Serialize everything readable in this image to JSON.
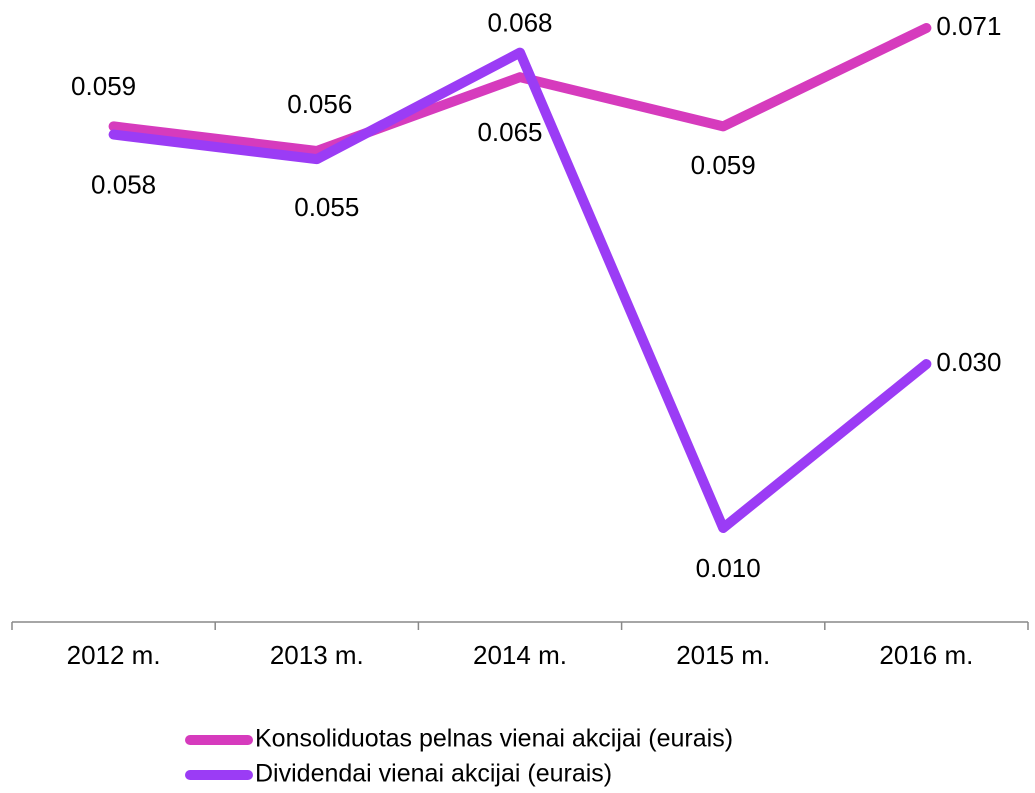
{
  "chart_data": {
    "type": "line",
    "categories": [
      "2012 m.",
      "2013 m.",
      "2014 m.",
      "2015 m.",
      "2016 m."
    ],
    "series": [
      {
        "name": "Konsoliduotas pelnas vienai akcijai (eurais)",
        "color": "#d63bbd",
        "values": [
          0.059,
          0.056,
          0.065,
          0.059,
          0.071
        ],
        "value_labels": [
          "0.059",
          "0.056",
          "0.065",
          "0.059",
          "0.071"
        ]
      },
      {
        "name": "Dividendai vienai akcijai (eurais)",
        "color": "#9b3cf5",
        "values": [
          0.058,
          0.055,
          0.068,
          0.01,
          0.03
        ],
        "value_labels": [
          "0.058",
          "0.055",
          "0.068",
          "0.010",
          "0.030"
        ]
      }
    ]
  }
}
